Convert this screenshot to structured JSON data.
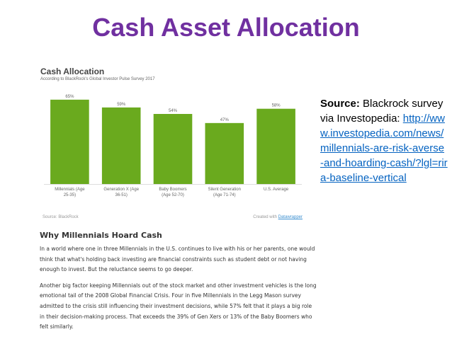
{
  "slide": {
    "title": "Cash Asset Allocation"
  },
  "chart_data": {
    "type": "bar",
    "title": "Cash Allocation",
    "subtitle": "According to BlackRock's Global Investor Pulse Survey 2017",
    "categories": [
      [
        "Millennials (Age",
        "25-35)"
      ],
      [
        "Generation X (Age",
        "36-51)"
      ],
      [
        "Baby Boomers",
        "(Age 52-70)"
      ],
      [
        "Silent Generation",
        "(Age 71-74)"
      ],
      [
        "U.S. Average"
      ]
    ],
    "values": [
      65,
      59,
      54,
      47,
      58
    ],
    "value_labels": [
      "65%",
      "59%",
      "54%",
      "47%",
      "58%"
    ],
    "ylim": [
      0,
      72
    ],
    "grid": false,
    "bar_color": "#6aaa1e",
    "source": "Source: BlackRock",
    "credit_prefix": "Created with",
    "credit_link": "Datawrapper"
  },
  "source_box": {
    "label": "Source:",
    "text": "Blackrock survey via Investopedia:",
    "url": "http://www.investopedia.com/news/millennials-are-risk-averse-and-hoarding-cash/?lgl=rira-baseline-vertical"
  },
  "article": {
    "heading": "Why Millennials Hoard Cash",
    "paragraphs": [
      "In a world where one in three Millennials in the U.S. continues to live with his or her parents, one would think that what's holding back investing are financial constraints such as student debt or not having enough to invest. But the reluctance seems to go deeper.",
      "Another big factor keeping Millennials out of the stock market and other investment vehicles is the long emotional tail of the 2008 Global Financial Crisis. Four in five Millennials in the Legg Mason survey admitted to the crisis still influencing their investment decisions, while 57% felt that it plays a big role in their decision-making process. That exceeds the 39% of Gen Xers or 13% of the Baby Boomers who felt similarly."
    ]
  }
}
